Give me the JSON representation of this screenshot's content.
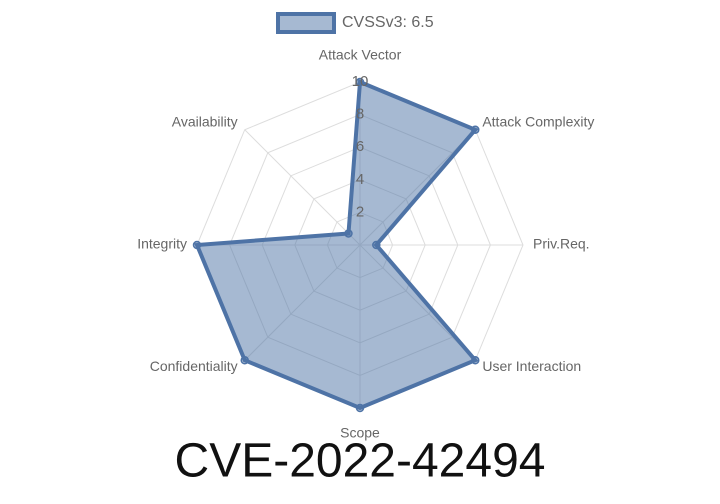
{
  "chart_data": {
    "type": "radar",
    "title": "CVE-2022-42494",
    "categories": [
      "Attack Vector",
      "Attack Complexity",
      "Priv.Req.",
      "User Interaction",
      "Scope",
      "Confidentiality",
      "Integrity",
      "Availability"
    ],
    "series": [
      {
        "name": "CVSSv3: 6.5",
        "color": "#4e73a6",
        "values": [
          10,
          10,
          1,
          10,
          10,
          10,
          10,
          1
        ]
      }
    ],
    "rlim": [
      0,
      10
    ],
    "rticks": [
      2,
      4,
      6,
      8,
      10
    ],
    "grid": true,
    "legend": "top"
  }
}
